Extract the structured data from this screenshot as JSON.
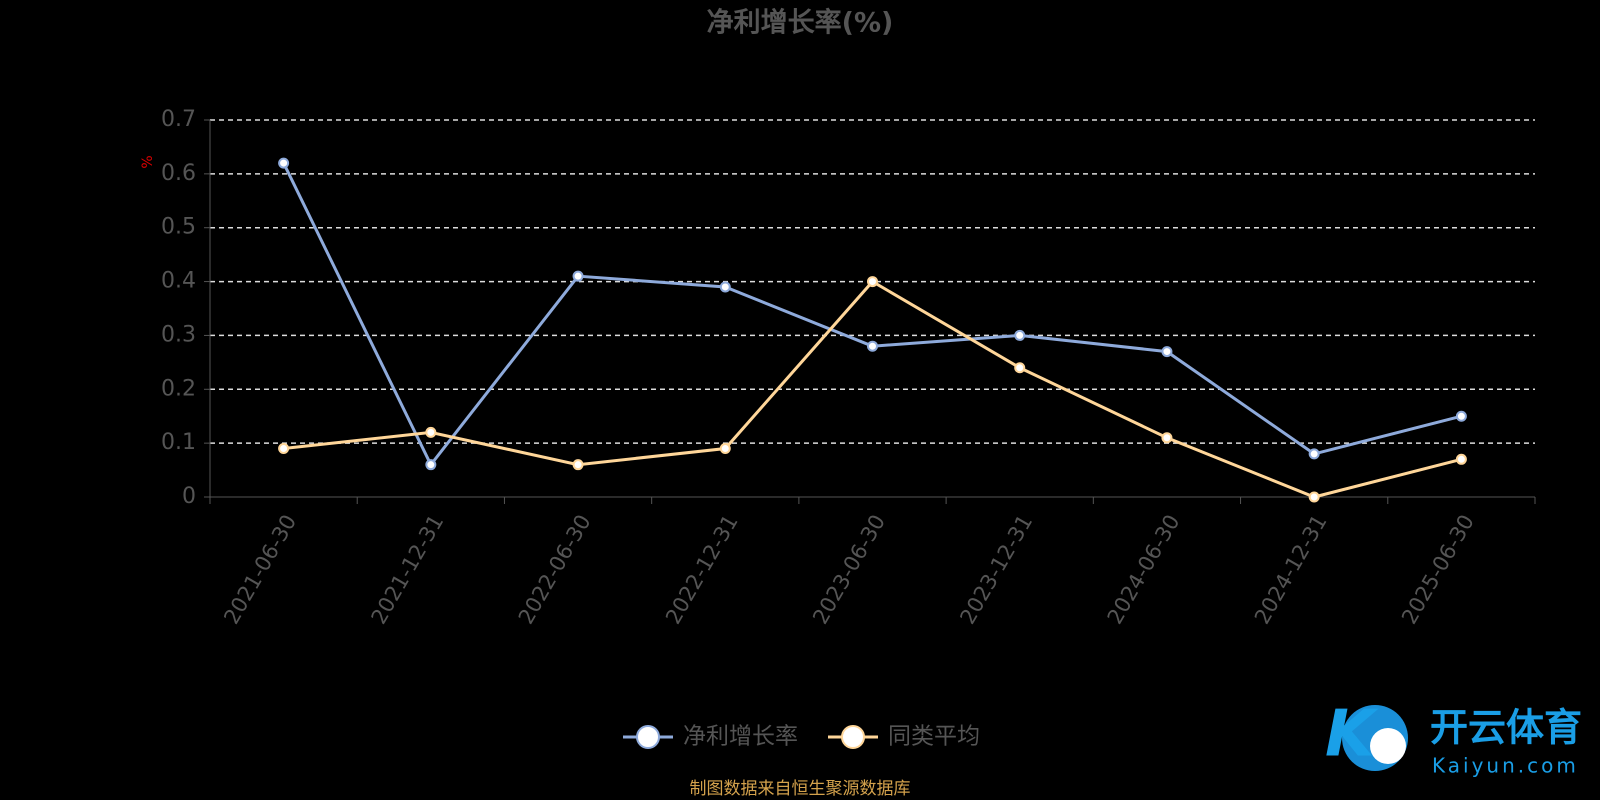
{
  "chart_data": {
    "type": "line",
    "title": "净利增长率(%)",
    "y_label": "%",
    "categories": [
      "2021-06-30",
      "2021-12-31",
      "2022-06-30",
      "2022-12-31",
      "2023-06-30",
      "2023-12-31",
      "2024-06-30",
      "2024-12-31",
      "2025-06-30"
    ],
    "series": [
      {
        "name": "净利增长率",
        "color": "#8eaadb",
        "values": [
          0.62,
          0.06,
          0.41,
          0.39,
          0.28,
          0.3,
          0.27,
          0.08,
          0.15
        ]
      },
      {
        "name": "同类平均",
        "color": "#ffd699",
        "values": [
          0.09,
          0.12,
          0.06,
          0.09,
          0.4,
          0.24,
          0.11,
          0.0,
          0.07
        ]
      }
    ],
    "ylim": [
      0,
      0.7
    ],
    "yticks": [
      0,
      0.1,
      0.2,
      0.3,
      0.4,
      0.5,
      0.6,
      0.7
    ],
    "grid": true,
    "legend": "bottom",
    "source": "制图数据来自恒生聚源数据库",
    "watermark": {
      "brand": "开云体育",
      "site": "Kaiyun.com"
    }
  }
}
